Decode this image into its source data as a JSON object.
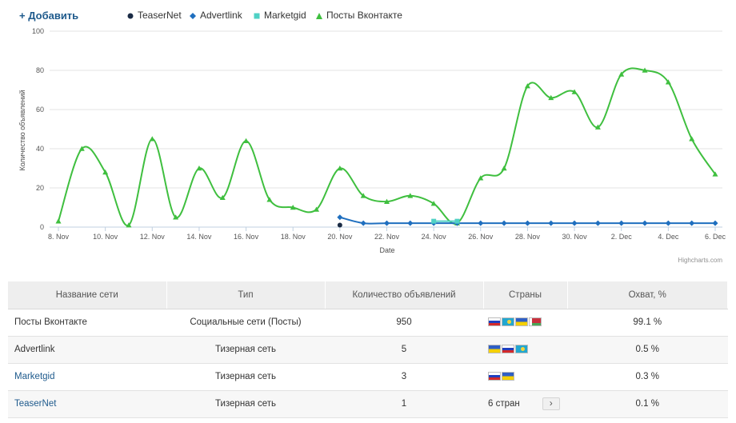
{
  "header": {
    "add_label": "+ Добавить"
  },
  "legend": [
    {
      "label": "TeaserNet",
      "color": "#1a2b45",
      "icon": "circle"
    },
    {
      "label": "Advertlink",
      "color": "#1f6fbf",
      "icon": "diamond"
    },
    {
      "label": "Marketgid",
      "color": "#4fd1c5",
      "icon": "square"
    },
    {
      "label": "Посты Вконтакте",
      "color": "#3fbf3f",
      "icon": "triangle"
    }
  ],
  "chart_data": {
    "type": "line",
    "xlabel": "Date",
    "ylabel": "Количество объявлений",
    "ylim": [
      0,
      100
    ],
    "yticks": [
      0,
      20,
      40,
      60,
      80,
      100
    ],
    "xticks": [
      "8. Nov",
      "10. Nov",
      "12. Nov",
      "14. Nov",
      "16. Nov",
      "18. Nov",
      "20. Nov",
      "22. Nov",
      "24. Nov",
      "26. Nov",
      "28. Nov",
      "30. Nov",
      "2. Dec",
      "4. Dec",
      "6. Dec"
    ],
    "x": [
      "8. Nov",
      "9. Nov",
      "10. Nov",
      "11. Nov",
      "12. Nov",
      "13. Nov",
      "14. Nov",
      "15. Nov",
      "16. Nov",
      "17. Nov",
      "18. Nov",
      "19. Nov",
      "20. Nov",
      "21. Nov",
      "22. Nov",
      "23. Nov",
      "24. Nov",
      "25. Nov",
      "26. Nov",
      "27. Nov",
      "28. Nov",
      "29. Nov",
      "30. Nov",
      "1. Dec",
      "2. Dec",
      "3. Dec",
      "4. Dec",
      "5. Dec",
      "6. Dec"
    ],
    "grid": true,
    "legend_position": "top",
    "credit": "Highcharts.com",
    "series": [
      {
        "name": "Посты Вконтакте",
        "color": "#3fbf3f",
        "marker": "triangle",
        "values": [
          3,
          40,
          28,
          1,
          45,
          5,
          30,
          15,
          44,
          14,
          10,
          9,
          30,
          16,
          13,
          16,
          12,
          2,
          25,
          30,
          72,
          66,
          69,
          51,
          78,
          80,
          74,
          45,
          27
        ]
      },
      {
        "name": "Advertlink",
        "color": "#1f6fbf",
        "marker": "diamond",
        "values": [
          null,
          null,
          null,
          null,
          null,
          null,
          null,
          null,
          null,
          null,
          null,
          null,
          5,
          2,
          2,
          2,
          2,
          2,
          2,
          2,
          2,
          2,
          2,
          2,
          2,
          2,
          2,
          2,
          2
        ]
      },
      {
        "name": "Marketgid",
        "color": "#4fd1c5",
        "marker": "square",
        "values": [
          null,
          null,
          null,
          null,
          null,
          null,
          null,
          null,
          null,
          null,
          null,
          null,
          null,
          null,
          null,
          null,
          3,
          3,
          null,
          null,
          null,
          null,
          null,
          null,
          null,
          null,
          null,
          null,
          null
        ]
      },
      {
        "name": "TeaserNet",
        "color": "#1a2b45",
        "marker": "circle",
        "values": [
          null,
          null,
          null,
          null,
          null,
          null,
          null,
          null,
          null,
          null,
          null,
          null,
          1,
          null,
          null,
          null,
          null,
          null,
          null,
          null,
          null,
          null,
          null,
          null,
          null,
          null,
          null,
          null,
          null
        ]
      }
    ]
  },
  "table": {
    "headers": [
      "Название сети",
      "Тип",
      "Количество объявлений",
      "Страны",
      "Охват, %"
    ],
    "rows": [
      {
        "name": "Посты Вконтакте",
        "link": false,
        "type": "Социальные сети (Посты)",
        "count": "950",
        "flags": [
          "ru",
          "kz",
          "ua",
          "by"
        ],
        "countries_text": "",
        "reach": "99.1 %"
      },
      {
        "name": "Advertlink",
        "link": false,
        "type": "Тизерная сеть",
        "count": "5",
        "flags": [
          "ua",
          "ru",
          "kz"
        ],
        "countries_text": "",
        "reach": "0.5 %"
      },
      {
        "name": "Marketgid",
        "link": true,
        "type": "Тизерная сеть",
        "count": "3",
        "flags": [
          "ru",
          "ua"
        ],
        "countries_text": "",
        "reach": "0.3 %"
      },
      {
        "name": "TeaserNet",
        "link": true,
        "type": "Тизерная сеть",
        "count": "1",
        "flags": [],
        "countries_text": "6 стран",
        "reach": "0.1 %"
      }
    ]
  }
}
